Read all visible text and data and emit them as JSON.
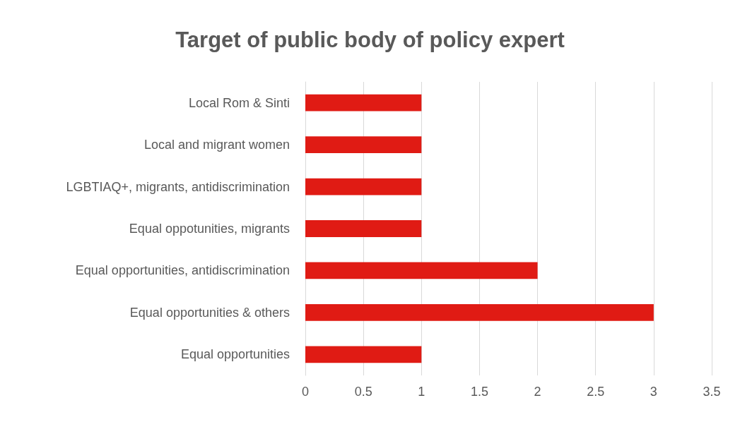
{
  "chart_data": {
    "type": "bar",
    "orientation": "horizontal",
    "title": "Target of public body of policy expert",
    "categories": [
      "Local Rom & Sinti",
      "Local and migrant women",
      "LGBTIAQ+, migrants, antidiscrimination",
      "Equal oppotunities, migrants",
      "Equal opportunities, antidiscrimination",
      "Equal opportunities & others",
      "Equal opportunities"
    ],
    "values": [
      1,
      1,
      1,
      1,
      2,
      3,
      1
    ],
    "color": "#e01b14",
    "xlim": [
      0,
      3.5
    ],
    "xticks": [
      0,
      0.5,
      1,
      1.5,
      2,
      2.5,
      3,
      3.5
    ],
    "grid": "x"
  }
}
